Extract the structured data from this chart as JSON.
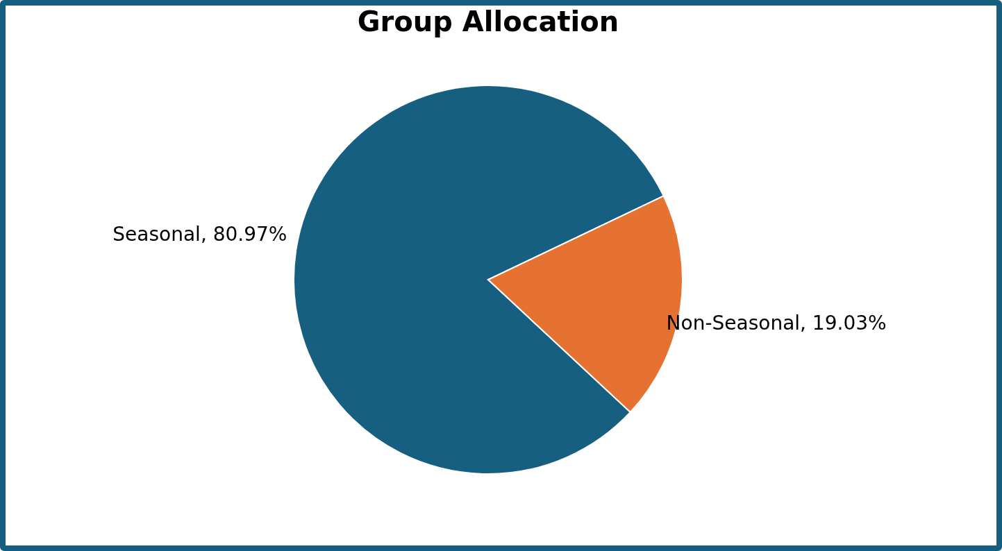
{
  "chart_data": {
    "type": "pie",
    "title": "Group Allocation",
    "categories": [
      "Seasonal",
      "Non-Seasonal"
    ],
    "values": [
      80.97,
      19.03
    ],
    "value_labels": [
      "80.97%",
      "19.03%"
    ],
    "colors": [
      "#175f80",
      "#e57231"
    ],
    "legend": false
  }
}
